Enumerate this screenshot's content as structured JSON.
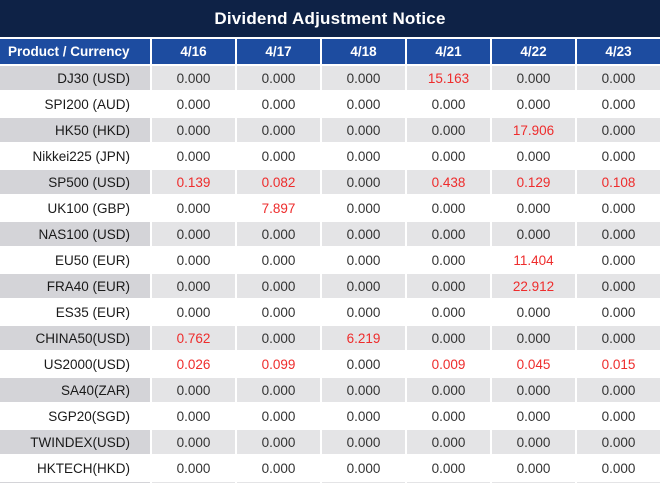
{
  "title": "Dividend Adjustment Notice",
  "colors": {
    "titleBarBg": "#0e2246",
    "headerBg": "#1d4ca0",
    "headerText": "#ffffff",
    "rowGrayLabel": "#d4d4d8",
    "rowGrayData": "#e4e4e6",
    "rowWhite": "#ffffff",
    "valueText": "#333333",
    "productText": "#1a1a1a",
    "highlightRed": "#ee2c2c",
    "separator": "#ffffff"
  },
  "table": {
    "header": [
      "Product / Currency",
      "4/16",
      "4/17",
      "4/18",
      "4/21",
      "4/22",
      "4/23"
    ],
    "rows": [
      {
        "product": "DJ30 (USD)",
        "values": [
          "0.000",
          "0.000",
          "0.000",
          "15.163",
          "0.000",
          "0.000"
        ],
        "red": [
          0,
          0,
          0,
          1,
          0,
          0
        ]
      },
      {
        "product": "SPI200 (AUD)",
        "values": [
          "0.000",
          "0.000",
          "0.000",
          "0.000",
          "0.000",
          "0.000"
        ],
        "red": [
          0,
          0,
          0,
          0,
          0,
          0
        ]
      },
      {
        "product": "HK50 (HKD)",
        "values": [
          "0.000",
          "0.000",
          "0.000",
          "0.000",
          "17.906",
          "0.000"
        ],
        "red": [
          0,
          0,
          0,
          0,
          1,
          0
        ]
      },
      {
        "product": "Nikkei225 (JPN)",
        "values": [
          "0.000",
          "0.000",
          "0.000",
          "0.000",
          "0.000",
          "0.000"
        ],
        "red": [
          0,
          0,
          0,
          0,
          0,
          0
        ]
      },
      {
        "product": "SP500 (USD)",
        "values": [
          "0.139",
          "0.082",
          "0.000",
          "0.438",
          "0.129",
          "0.108"
        ],
        "red": [
          1,
          1,
          0,
          1,
          1,
          1
        ]
      },
      {
        "product": "UK100 (GBP)",
        "values": [
          "0.000",
          "7.897",
          "0.000",
          "0.000",
          "0.000",
          "0.000"
        ],
        "red": [
          0,
          1,
          0,
          0,
          0,
          0
        ]
      },
      {
        "product": "NAS100 (USD)",
        "values": [
          "0.000",
          "0.000",
          "0.000",
          "0.000",
          "0.000",
          "0.000"
        ],
        "red": [
          0,
          0,
          0,
          0,
          0,
          0
        ]
      },
      {
        "product": "EU50 (EUR)",
        "values": [
          "0.000",
          "0.000",
          "0.000",
          "0.000",
          "11.404",
          "0.000"
        ],
        "red": [
          0,
          0,
          0,
          0,
          1,
          0
        ]
      },
      {
        "product": "FRA40 (EUR)",
        "values": [
          "0.000",
          "0.000",
          "0.000",
          "0.000",
          "22.912",
          "0.000"
        ],
        "red": [
          0,
          0,
          0,
          0,
          1,
          0
        ]
      },
      {
        "product": "ES35 (EUR)",
        "values": [
          "0.000",
          "0.000",
          "0.000",
          "0.000",
          "0.000",
          "0.000"
        ],
        "red": [
          0,
          0,
          0,
          0,
          0,
          0
        ]
      },
      {
        "product": "CHINA50(USD)",
        "values": [
          "0.762",
          "0.000",
          "6.219",
          "0.000",
          "0.000",
          "0.000"
        ],
        "red": [
          1,
          0,
          1,
          0,
          0,
          0
        ]
      },
      {
        "product": "US2000(USD)",
        "values": [
          "0.026",
          "0.099",
          "0.000",
          "0.009",
          "0.045",
          "0.015"
        ],
        "red": [
          1,
          1,
          0,
          1,
          1,
          1
        ]
      },
      {
        "product": "SA40(ZAR)",
        "values": [
          "0.000",
          "0.000",
          "0.000",
          "0.000",
          "0.000",
          "0.000"
        ],
        "red": [
          0,
          0,
          0,
          0,
          0,
          0
        ]
      },
      {
        "product": "SGP20(SGD)",
        "values": [
          "0.000",
          "0.000",
          "0.000",
          "0.000",
          "0.000",
          "0.000"
        ],
        "red": [
          0,
          0,
          0,
          0,
          0,
          0
        ]
      },
      {
        "product": "TWINDEX(USD)",
        "values": [
          "0.000",
          "0.000",
          "0.000",
          "0.000",
          "0.000",
          "0.000"
        ],
        "red": [
          0,
          0,
          0,
          0,
          0,
          0
        ]
      },
      {
        "product": "HKTECH(HKD)",
        "values": [
          "0.000",
          "0.000",
          "0.000",
          "0.000",
          "0.000",
          "0.000"
        ],
        "red": [
          0,
          0,
          0,
          0,
          0,
          0
        ]
      }
    ]
  }
}
